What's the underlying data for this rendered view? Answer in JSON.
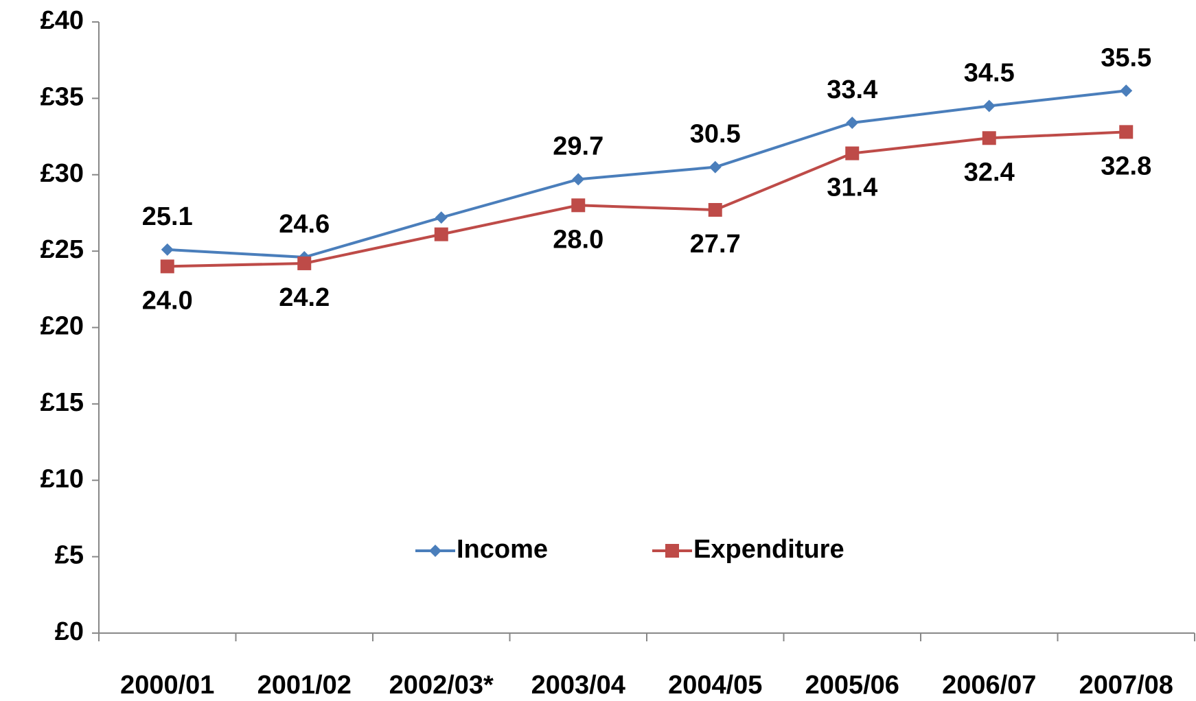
{
  "chart_data": {
    "type": "line",
    "categories": [
      "2000/01",
      "2001/02",
      "2002/03*",
      "2003/04",
      "2004/05",
      "2005/06",
      "2006/07",
      "2007/08"
    ],
    "series": [
      {
        "name": "Income",
        "color": "#4a7ebb",
        "marker": "diamond",
        "label_position": "above",
        "values": [
          25.1,
          24.6,
          27.2,
          29.7,
          30.5,
          33.4,
          34.5,
          35.5
        ],
        "value_labels": [
          "25.1",
          "24.6",
          null,
          "29.7",
          "30.5",
          "33.4",
          "34.5",
          "35.5"
        ]
      },
      {
        "name": "Expenditure",
        "color": "#be4b48",
        "marker": "square",
        "label_position": "below",
        "values": [
          24.0,
          24.2,
          26.1,
          28.0,
          27.7,
          31.4,
          32.4,
          32.8
        ],
        "value_labels": [
          "24.0",
          "24.2",
          null,
          "28.0",
          "27.7",
          "31.4",
          "32.4",
          "32.8"
        ]
      }
    ],
    "ylim": [
      0,
      40
    ],
    "yticks": [
      {
        "value": 0,
        "label": "£0"
      },
      {
        "value": 5,
        "label": "£5"
      },
      {
        "value": 10,
        "label": "£10"
      },
      {
        "value": 15,
        "label": "£15"
      },
      {
        "value": 20,
        "label": "£20"
      },
      {
        "value": 25,
        "label": "£25"
      },
      {
        "value": 30,
        "label": "£30"
      },
      {
        "value": 35,
        "label": "£35"
      },
      {
        "value": 40,
        "label": "£40"
      }
    ],
    "grid": false,
    "legend": "bottom-center"
  }
}
